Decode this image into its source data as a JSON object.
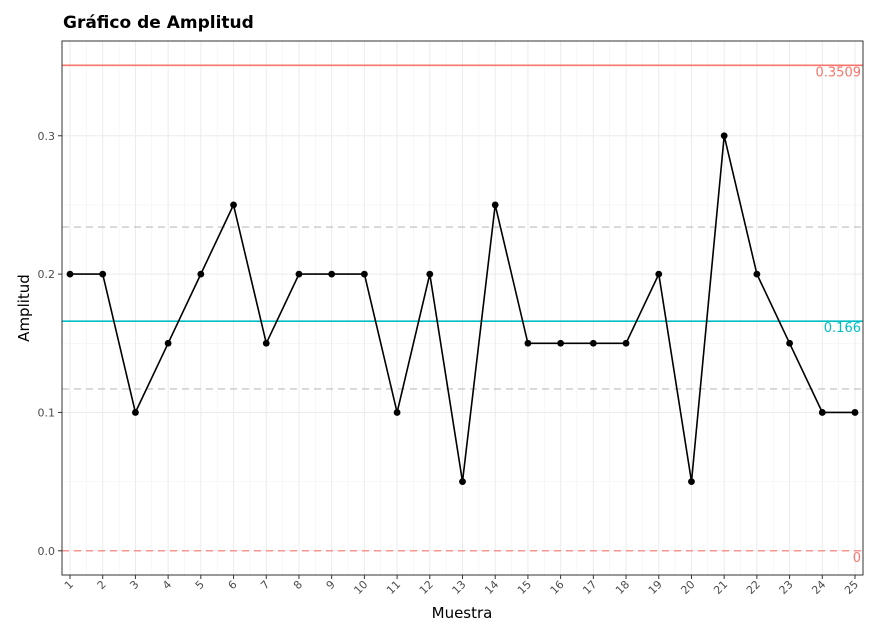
{
  "chart_data": {
    "type": "line",
    "title": "Gráfico de Amplitud",
    "xlabel": "Muestra",
    "ylabel": "Amplitud",
    "x": [
      1,
      2,
      3,
      4,
      5,
      6,
      7,
      8,
      9,
      10,
      11,
      12,
      13,
      14,
      15,
      16,
      17,
      18,
      19,
      20,
      21,
      22,
      23,
      24,
      25
    ],
    "series": [
      {
        "values": [
          0.2,
          0.2,
          0.1,
          0.15,
          0.2,
          0.25,
          0.15,
          0.2,
          0.2,
          0.2,
          0.1,
          0.2,
          0.05,
          0.25,
          0.15,
          0.15,
          0.15,
          0.15,
          0.2,
          0.05,
          0.3,
          0.2,
          0.15,
          0.1,
          0.1
        ],
        "color": "#000000"
      }
    ],
    "xlim": [
      1,
      25
    ],
    "ylim": [
      -0.0175,
      0.3685
    ],
    "yticks": [
      0.0,
      0.1,
      0.2,
      0.3
    ],
    "ytick_labels": [
      "0.0",
      "0.1",
      "0.2",
      "0.3"
    ],
    "reference_lines": [
      {
        "value": 0.3509,
        "label": "0.3509",
        "color": "#F8766D",
        "style": "solid"
      },
      {
        "value": 0.166,
        "label": "0.166",
        "color": "#00BFC4",
        "style": "solid"
      },
      {
        "value": 0.0,
        "label": "0",
        "color": "#F8766D",
        "style": "dashed"
      },
      {
        "value": 0.234,
        "label": "",
        "color": "#bdbdbd",
        "style": "dashed"
      },
      {
        "value": 0.117,
        "label": "",
        "color": "#bdbdbd",
        "style": "dashed"
      }
    ],
    "grid": true,
    "legend": "none"
  }
}
